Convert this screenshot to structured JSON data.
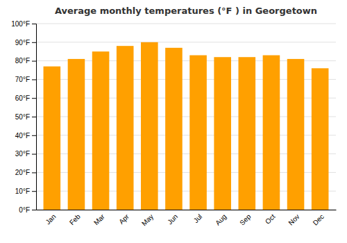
{
  "chart_data": {
    "type": "bar",
    "title": "Average monthly temperatures (°F ) in Georgetown",
    "categories": [
      "Jan",
      "Feb",
      "Mar",
      "Apr",
      "May",
      "Jun",
      "Jul",
      "Aug",
      "Sep",
      "Oct",
      "Nov",
      "Dec"
    ],
    "values": [
      77,
      81,
      85,
      88,
      90,
      87,
      83,
      82,
      82,
      83,
      81,
      76
    ],
    "color": "#FFA000",
    "ylim": [
      0,
      100
    ],
    "yticks": [
      {
        "value": 0,
        "label": "0°F"
      },
      {
        "value": 10,
        "label": "10°F"
      },
      {
        "value": 20,
        "label": "20°F"
      },
      {
        "value": 30,
        "label": "30°F"
      },
      {
        "value": 40,
        "label": "40°F"
      },
      {
        "value": 50,
        "label": "50°F"
      },
      {
        "value": 60,
        "label": "60°F"
      },
      {
        "value": 70,
        "label": "70°F"
      },
      {
        "value": 80,
        "label": "80°F"
      },
      {
        "value": 90,
        "label": "90°F"
      },
      {
        "value": 100,
        "label": "100°F"
      }
    ],
    "grid": true
  }
}
